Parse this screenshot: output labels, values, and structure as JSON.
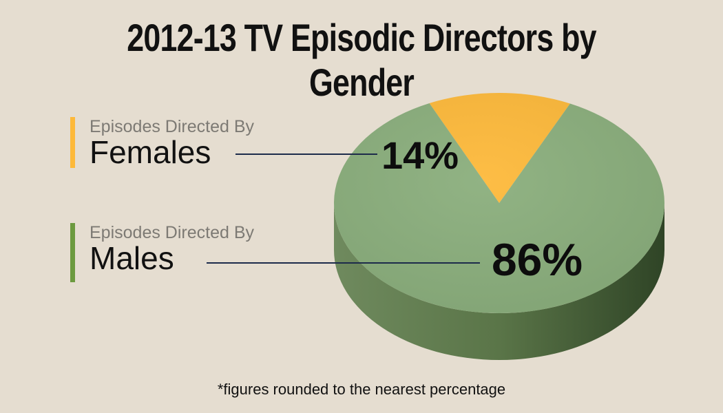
{
  "title": "2012-13 TV Episodic Directors by Gender",
  "footnote": "*figures rounded to the nearest percentage",
  "colors": {
    "female": "#fdb93a",
    "male": "#8aae7c",
    "male_bar": "#6c9a3f",
    "leader": "#1c2a4a"
  },
  "legend": [
    {
      "subtitle": "Episodes Directed By",
      "label": "Females"
    },
    {
      "subtitle": "Episodes Directed By",
      "label": "Males"
    }
  ],
  "chart_data": {
    "type": "pie",
    "title": "2012-13 TV Episodic Directors by Gender",
    "labels": [
      "Females",
      "Males"
    ],
    "values": [
      14,
      86
    ],
    "value_labels": [
      "14%",
      "86%"
    ],
    "legend": "left",
    "style": "3d"
  }
}
